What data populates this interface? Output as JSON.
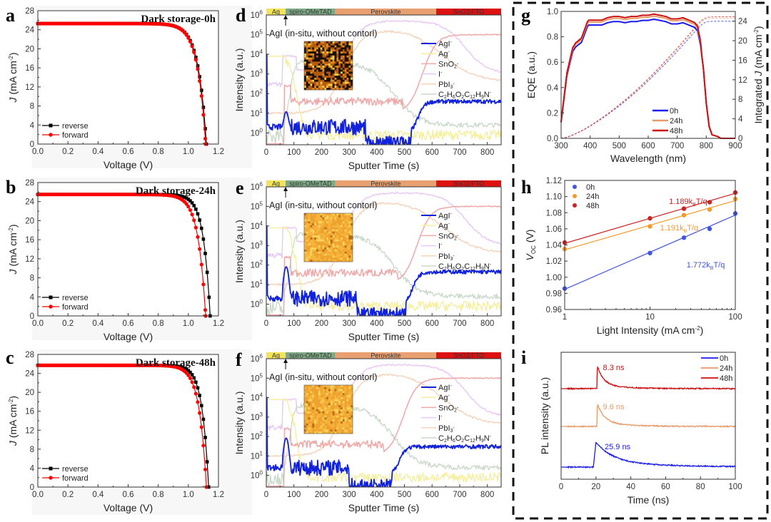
{
  "chart_data": [
    {
      "id": "a",
      "type": "line",
      "panel_label": "a",
      "title": "Dark storage-0h",
      "xlabel": "Voltage (V)",
      "ylabel": "J (mA cm-2)",
      "xlim": [
        0,
        1.2
      ],
      "ylim": [
        0,
        28
      ],
      "xticks": [
        "0.0",
        "0.2",
        "0.4",
        "0.6",
        "0.8",
        "1.0",
        "1.2"
      ],
      "yticks": [
        "0",
        "4",
        "8",
        "12",
        "16",
        "20",
        "24",
        "28"
      ],
      "legend": [
        "reverse",
        "forward"
      ],
      "legend_position": "bottom-left",
      "series": [
        {
          "name": "reverse",
          "color": "#000000",
          "marker": "square",
          "jsc": 25.3,
          "voc": 1.12,
          "knee": 0.055
        },
        {
          "name": "forward",
          "color": "#ff0000",
          "marker": "circle",
          "jsc": 25.3,
          "voc": 1.115,
          "knee": 0.054
        }
      ]
    },
    {
      "id": "b",
      "type": "line",
      "panel_label": "b",
      "title": "Dark storage-24h",
      "xlabel": "Voltage (V)",
      "ylabel": "J (mA cm-2)",
      "xlim": [
        0,
        1.2
      ],
      "ylim": [
        0,
        28
      ],
      "xticks": [
        "0.0",
        "0.2",
        "0.4",
        "0.6",
        "0.8",
        "1.0",
        "1.2"
      ],
      "yticks": [
        "0",
        "4",
        "8",
        "12",
        "16",
        "20",
        "24",
        "28"
      ],
      "legend": [
        "reverse",
        "forward"
      ],
      "legend_position": "bottom-left",
      "series": [
        {
          "name": "reverse",
          "color": "#000000",
          "marker": "square",
          "jsc": 25.5,
          "voc": 1.145,
          "knee": 0.045
        },
        {
          "name": "forward",
          "color": "#ff0000",
          "marker": "circle",
          "jsc": 25.5,
          "voc": 1.115,
          "knee": 0.05
        }
      ]
    },
    {
      "id": "c",
      "type": "line",
      "panel_label": "c",
      "title": "Dark storage-48h",
      "xlabel": "Voltage (V)",
      "ylabel": "J (mA cm-2)",
      "xlim": [
        0,
        1.2
      ],
      "ylim": [
        0,
        28
      ],
      "xticks": [
        "0.0",
        "0.2",
        "0.4",
        "0.6",
        "0.8",
        "1.0",
        "1.2"
      ],
      "yticks": [
        "0",
        "4",
        "8",
        "12",
        "16",
        "20",
        "24",
        "28"
      ],
      "legend": [
        "reverse",
        "forward"
      ],
      "legend_position": "bottom-left",
      "series": [
        {
          "name": "reverse",
          "color": "#000000",
          "marker": "square",
          "jsc": 25.7,
          "voc": 1.135,
          "knee": 0.043
        },
        {
          "name": "forward",
          "color": "#ff0000",
          "marker": "circle",
          "jsc": 25.7,
          "voc": 1.12,
          "knee": 0.048
        }
      ]
    },
    {
      "id": "d",
      "type": "line",
      "panel_label": "d",
      "yscale": "log",
      "xlabel": "Sputter Time (s)",
      "ylabel": "Intensity (a.u.)",
      "xlim": [
        0,
        850
      ],
      "ylim_exp": [
        -0.6,
        6
      ],
      "xticks": [
        "0",
        "100",
        "200",
        "300",
        "400",
        "500",
        "600",
        "700",
        "800"
      ],
      "yticks": [
        "10^0",
        "10^1",
        "10^2",
        "10^3",
        "10^4",
        "10^5",
        "10^6"
      ],
      "layers": [
        {
          "name": "Ag",
          "from": 0,
          "to": 70,
          "color": "#f2e35a"
        },
        {
          "name": "spiro-OMeTAD",
          "from": 70,
          "to": 250,
          "color": "#7fa986"
        },
        {
          "name": "Perovskite",
          "from": 250,
          "to": 615,
          "color": "#e8a070"
        },
        {
          "name": "SnO2/FTO",
          "from": 615,
          "to": 850,
          "color": "#dd1111"
        }
      ],
      "annotation": "AgI (in-situ, without contorl)",
      "annotation_x": 70,
      "inset": "AgI- 2D mapping (dark, sparse)",
      "legend_position": "right",
      "legend": [
        "AgI-",
        "Ag-",
        "SnO2-",
        "I-",
        "PbI3-",
        "C2H6O2C12H9N-"
      ],
      "agi_profile": {
        "surface": 10000,
        "spiro_peak": 10,
        "spiro_level": 2,
        "gap_start": 360,
        "gap_end": 525,
        "fto_level": 40
      }
    },
    {
      "id": "e",
      "type": "line",
      "panel_label": "e",
      "yscale": "log",
      "xlabel": "Sputter Time (s)",
      "ylabel": "Intensity (a.u.)",
      "xlim": [
        0,
        850
      ],
      "ylim_exp": [
        -0.6,
        6
      ],
      "xticks": [
        "0",
        "100",
        "200",
        "300",
        "400",
        "500",
        "600",
        "700",
        "800"
      ],
      "yticks": [
        "10^0",
        "10^1",
        "10^2",
        "10^3",
        "10^4",
        "10^5",
        "10^6"
      ],
      "layers": [
        {
          "name": "Ag",
          "from": 0,
          "to": 70,
          "color": "#f2e35a"
        },
        {
          "name": "spiro-OMeTAD",
          "from": 70,
          "to": 250,
          "color": "#7fa986"
        },
        {
          "name": "Perovskite",
          "from": 250,
          "to": 615,
          "color": "#e8a070"
        },
        {
          "name": "SnO2/FTO",
          "from": 615,
          "to": 850,
          "color": "#dd1111"
        }
      ],
      "annotation": "AgI (in-situ, without contorl)",
      "annotation_x": 70,
      "inset": "AgI- 2D mapping (dense)",
      "legend_position": "right",
      "legend": [
        "AgI-",
        "Ag-",
        "SnO2-",
        "I-",
        "PbI3-",
        "C2H6O2C12H9N-"
      ],
      "agi_profile": {
        "surface": 10000,
        "spiro_peak": 80,
        "spiro_level": 2,
        "gap_start": 330,
        "gap_end": 505,
        "fto_level": 45
      }
    },
    {
      "id": "f",
      "type": "line",
      "panel_label": "f",
      "yscale": "log",
      "xlabel": "Sputter Time (s)",
      "ylabel": "Intensity (a.u.)",
      "xlim": [
        0,
        850
      ],
      "ylim_exp": [
        -0.6,
        6
      ],
      "xticks": [
        "0",
        "100",
        "200",
        "300",
        "400",
        "500",
        "600",
        "700",
        "800"
      ],
      "yticks": [
        "10^0",
        "10^1",
        "10^2",
        "10^3",
        "10^4",
        "10^5",
        "10^6"
      ],
      "layers": [
        {
          "name": "Ag",
          "from": 0,
          "to": 70,
          "color": "#f2e35a"
        },
        {
          "name": "spiro-OMeTAD",
          "from": 70,
          "to": 250,
          "color": "#7fa986"
        },
        {
          "name": "Perovskite",
          "from": 250,
          "to": 615,
          "color": "#e8a070"
        },
        {
          "name": "SnO2/FTO",
          "from": 615,
          "to": 850,
          "color": "#dd1111"
        }
      ],
      "annotation": "AgI (in-situ, without contorl)",
      "annotation_x": 70,
      "inset": "AgI- 2D mapping (dense)",
      "legend_position": "right",
      "legend": [
        "AgI-",
        "Ag-",
        "SnO2-",
        "I-",
        "PbI3-",
        "C2H6O2C12H9N-"
      ],
      "agi_profile": {
        "surface": 10000,
        "spiro_peak": 80,
        "spiro_level": 2.5,
        "gap_start": 300,
        "gap_end": 455,
        "fto_level": 30
      }
    },
    {
      "id": "g",
      "type": "line",
      "panel_label": "g",
      "xlabel": "Wavelength (nm)",
      "ylabel": "EQE (a.u.)",
      "ylabel_right": "Integrated J (mA cm-2)",
      "xlim": [
        300,
        900
      ],
      "ylim": [
        0,
        1.0
      ],
      "ylim_right": [
        0,
        26
      ],
      "xticks": [
        "300",
        "400",
        "500",
        "600",
        "700",
        "800",
        "900"
      ],
      "yticks": [
        "0.0",
        "0.2",
        "0.4",
        "0.6",
        "0.8",
        "1.0"
      ],
      "yticks_right": [
        "0",
        "4",
        "8",
        "12",
        "16",
        "20",
        "24"
      ],
      "legend": [
        "0h",
        "24h",
        "48h"
      ],
      "legend_position": "bottom-right",
      "series": [
        {
          "name": "0h",
          "color": "#1a1aee",
          "plateau": 0.92,
          "integrated": 24.0
        },
        {
          "name": "24h",
          "color": "#e89a6a",
          "plateau": 0.945,
          "integrated": 24.6
        },
        {
          "name": "48h",
          "color": "#cc1111",
          "plateau": 0.96,
          "integrated": 24.9
        }
      ],
      "eqe_shape": {
        "x": [
          300,
          320,
          340,
          350,
          370,
          385,
          395,
          420,
          440,
          460,
          480,
          500,
          520,
          540,
          560,
          580,
          600,
          620,
          640,
          660,
          680,
          700,
          720,
          740,
          760,
          770,
          780,
          790,
          800,
          810,
          820,
          840,
          850,
          900
        ],
        "rel": [
          0.14,
          0.55,
          0.76,
          0.8,
          0.84,
          0.94,
          0.97,
          0.97,
          0.97,
          0.99,
          1.0,
          1.0,
          0.99,
          1.0,
          1.0,
          1.01,
          1.01,
          1.02,
          1.01,
          1.0,
          0.98,
          0.98,
          0.99,
          0.97,
          0.95,
          0.92,
          0.8,
          0.6,
          0.3,
          0.1,
          0.03,
          0.015,
          0.0,
          0.0
        ]
      }
    },
    {
      "id": "h",
      "type": "scatter",
      "panel_label": "h",
      "xscale": "log",
      "xlabel": "Light Intensity (mA cm-2)",
      "ylabel": "VOC (V)",
      "xlim": [
        1,
        100
      ],
      "ylim": [
        0.96,
        1.12
      ],
      "xticks": [
        "1",
        "10",
        "100"
      ],
      "yticks": [
        "0.96",
        "0.98",
        "1.00",
        "1.02",
        "1.04",
        "1.06",
        "1.08",
        "1.10",
        "1.12"
      ],
      "legend": [
        "0h",
        "24h",
        "48h"
      ],
      "legend_position": "top-left",
      "series": [
        {
          "name": "0h",
          "color": "#4455dd",
          "x": [
            1,
            10,
            25,
            50,
            100
          ],
          "y": [
            0.986,
            1.03,
            1.049,
            1.06,
            1.079
          ],
          "fit_label": "1.772kBT/q",
          "fit": [
            0.985,
            1.077
          ]
        },
        {
          "name": "24h",
          "color": "#f39a2a",
          "x": [
            1,
            10,
            25,
            50,
            100
          ],
          "y": [
            1.035,
            1.063,
            1.077,
            1.084,
            1.097
          ],
          "fit_label": "1.191kBT/q",
          "fit": [
            1.034,
            1.095
          ]
        },
        {
          "name": "48h",
          "color": "#cc2222",
          "x": [
            1,
            10,
            25,
            50,
            100
          ],
          "y": [
            1.043,
            1.073,
            1.085,
            1.093,
            1.105
          ],
          "fit_label": "1.189kBT/q",
          "fit": [
            1.042,
            1.104
          ]
        }
      ]
    },
    {
      "id": "i",
      "type": "line",
      "panel_label": "i",
      "xlabel": "Time (ns)",
      "ylabel": "PL intensity (a.u.)",
      "xlim": [
        0,
        100
      ],
      "xticks": [
        "0",
        "20",
        "40",
        "60",
        "80",
        "100"
      ],
      "legend": [
        "0h",
        "24h",
        "48h"
      ],
      "legend_position": "top-right",
      "series": [
        {
          "name": "0h",
          "color": "#1a1aee",
          "lifetime_label": "25.9 ns",
          "tau": 10,
          "onset": 18.5,
          "peak_t": 20
        },
        {
          "name": "24h",
          "color": "#e89a6a",
          "lifetime_label": "9.6 ns",
          "tau": 4,
          "onset": 20.5,
          "peak_t": 20.8
        },
        {
          "name": "48h",
          "color": "#cc1111",
          "lifetime_label": "8.3 ns",
          "tau": 3.5,
          "onset": 20.5,
          "peak_t": 20.8
        }
      ]
    }
  ]
}
